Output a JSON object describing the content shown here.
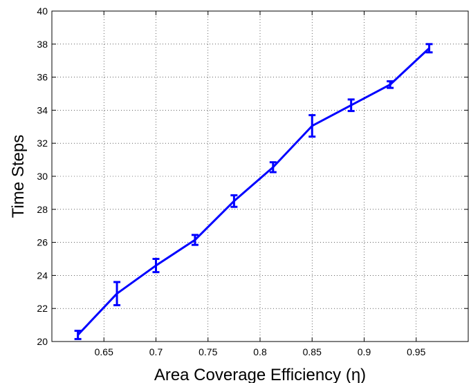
{
  "chart_data": {
    "type": "line",
    "title": "",
    "xlabel": "Area Coverage Efficiency (η)",
    "ylabel": "Time Steps",
    "xlim": [
      0.6,
      1.0
    ],
    "ylim": [
      20,
      40
    ],
    "xticks": [
      0.65,
      0.7,
      0.75,
      0.8,
      0.85,
      0.9,
      0.95
    ],
    "xtick_labels": [
      "0.65",
      "0.7",
      "0.75",
      "0.8",
      "0.85",
      "0.9",
      "0.95"
    ],
    "yticks": [
      20,
      22,
      24,
      26,
      28,
      30,
      32,
      34,
      36,
      38,
      40
    ],
    "ytick_labels": [
      "20",
      "22",
      "24",
      "26",
      "28",
      "30",
      "32",
      "34",
      "36",
      "38",
      "40"
    ],
    "grid": true,
    "series": [
      {
        "color": "#0000ff",
        "x": [
          0.625,
          0.6625,
          0.7,
          0.7375,
          0.775,
          0.8125,
          0.85,
          0.8875,
          0.925,
          0.9625
        ],
        "y": [
          20.4,
          22.9,
          24.6,
          26.15,
          28.5,
          30.55,
          33.05,
          34.3,
          35.55,
          37.75
        ],
        "error": [
          0.25,
          0.7,
          0.4,
          0.3,
          0.35,
          0.3,
          0.65,
          0.35,
          0.2,
          0.25
        ]
      }
    ]
  }
}
